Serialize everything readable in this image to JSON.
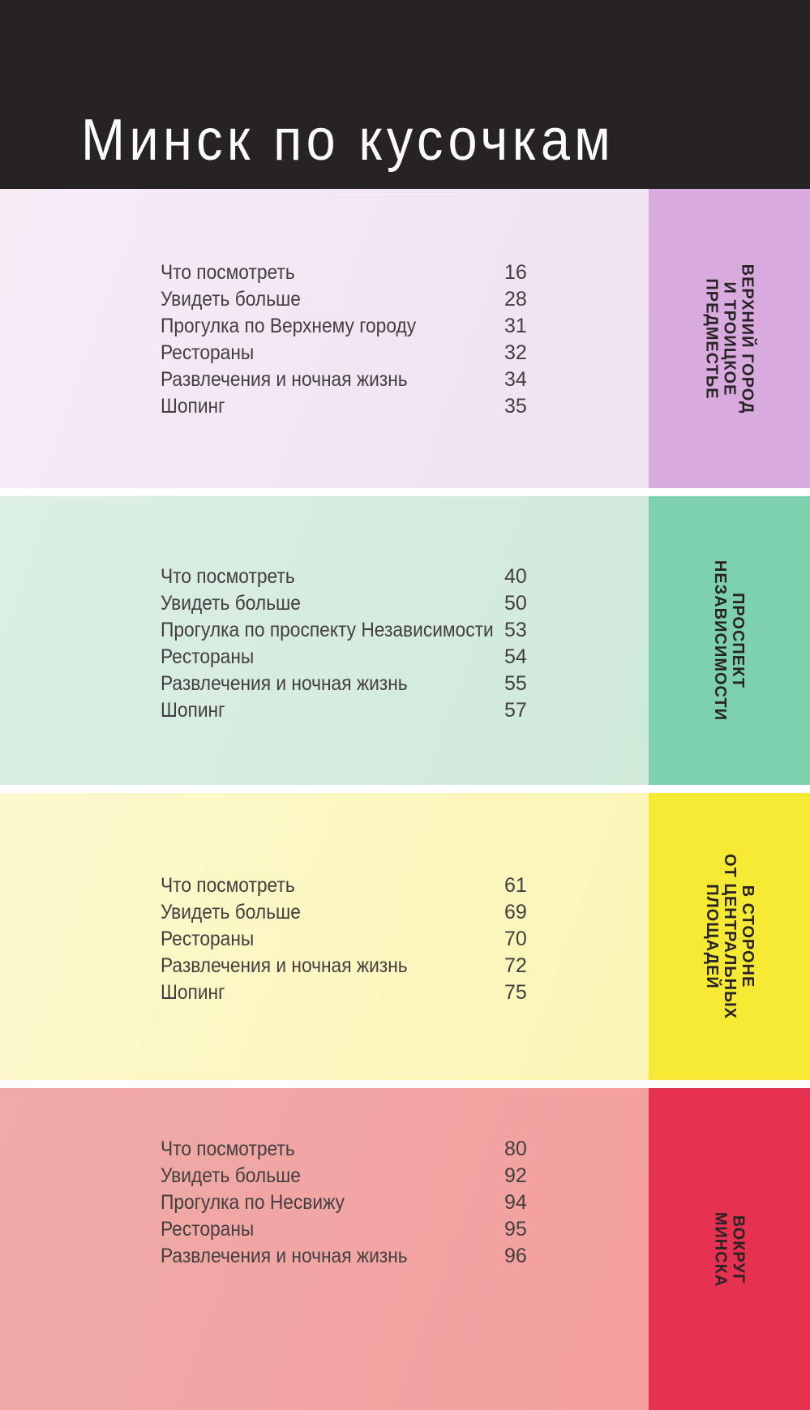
{
  "header": {
    "title": "Минск по кусочкам",
    "bg_color": "#272223",
    "text_color": "#fcfcfc"
  },
  "text_color": "#433e3f",
  "tab_text_color": "#282324",
  "sections": [
    {
      "id": "verkhny-gorod-i-troitskoe-predmestye",
      "tab_label_lines": [
        "ВЕРХНИЙ ГОРОД",
        "И ТРОИЦКОЕ",
        "ПРЕДМЕСТЬЕ"
      ],
      "colors": {
        "bg_left": "#f6ecf6",
        "bg_right": "#eddff0",
        "tab": "#d9aade"
      },
      "items": [
        {
          "label": "Что посмотреть",
          "page": "16"
        },
        {
          "label": "Увидеть больше",
          "page": "28"
        },
        {
          "label": "Прогулка по Верхнему городу",
          "page": "31"
        },
        {
          "label": "Рестораны",
          "page": "32"
        },
        {
          "label": "Развлечения и ночная жизнь",
          "page": "34"
        },
        {
          "label": "Шопинг",
          "page": "35"
        }
      ]
    },
    {
      "id": "prospekt-nezavisimosti",
      "tab_label_lines": [
        "ПРОСПЕКТ",
        "НЕЗАВИСИМОСТИ"
      ],
      "colors": {
        "bg_left": "#dcefe4",
        "bg_right": "#cde8d8",
        "tab": "#7ed1ae"
      },
      "items": [
        {
          "label": "Что посмотреть",
          "page": "40"
        },
        {
          "label": "Увидеть больше",
          "page": "50"
        },
        {
          "label": "Прогулка по проспекту Независимости",
          "page": "53"
        },
        {
          "label": "Рестораны",
          "page": "54"
        },
        {
          "label": "Развлечения и ночная жизнь",
          "page": "55"
        },
        {
          "label": "Шопинг",
          "page": "57"
        }
      ]
    },
    {
      "id": "v-storone-ot-tsentralnykh-ploshchadey",
      "tab_label_lines": [
        "В СТОРОНЕ",
        "ОТ ЦЕНТРАЛЬНЫХ",
        "ПЛОЩАДЕЙ"
      ],
      "colors": {
        "bg_left": "#fdf9cf",
        "bg_right": "#faf4ae",
        "tab": "#f7ea35"
      },
      "items": [
        {
          "label": "Что посмотреть",
          "page": "61"
        },
        {
          "label": "Увидеть больше",
          "page": "69"
        },
        {
          "label": "Рестораны",
          "page": "70"
        },
        {
          "label": "Развлечения и ночная жизнь",
          "page": "72"
        },
        {
          "label": "Шопинг",
          "page": "75"
        }
      ]
    },
    {
      "id": "vokrug-minska",
      "tab_label_lines": [
        "ВОКРУГ",
        "МИНСКА"
      ],
      "colors": {
        "bg_left": "#efaba7",
        "bg_right": "#f59d9c",
        "tab": "#e73150"
      },
      "items": [
        {
          "label": "Что посмотреть",
          "page": "80"
        },
        {
          "label": "Увидеть больше",
          "page": "92"
        },
        {
          "label": "Прогулка по Несвижу",
          "page": "94"
        },
        {
          "label": "Рестораны",
          "page": "95"
        },
        {
          "label": "Развлечения и ночная жизнь",
          "page": "96"
        }
      ]
    }
  ]
}
